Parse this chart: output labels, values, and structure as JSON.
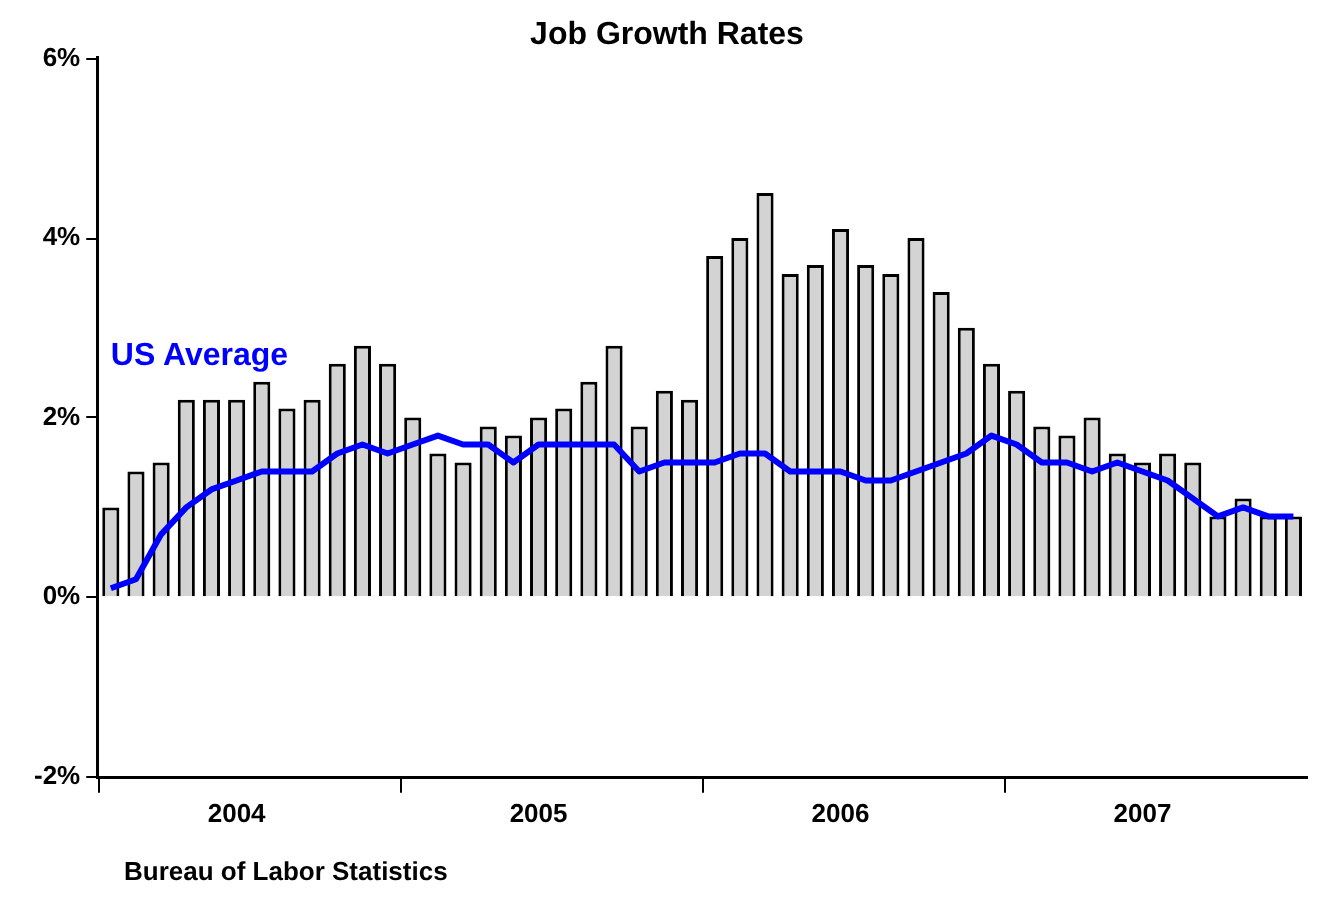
{
  "chart_data": {
    "type": "bar",
    "title": "Job Growth Rates",
    "categories": [
      null,
      null,
      null,
      null,
      null,
      "2004",
      null,
      null,
      null,
      null,
      null,
      null,
      null,
      null,
      null,
      null,
      null,
      "2005",
      null,
      null,
      null,
      null,
      null,
      null,
      null,
      null,
      null,
      null,
      null,
      "2006",
      null,
      null,
      null,
      null,
      null,
      null,
      null,
      null,
      null,
      null,
      null,
      "2007",
      null,
      null,
      null,
      null,
      null,
      null
    ],
    "series": [
      {
        "color": "#d3d3d3",
        "values": [
          1.0,
          1.4,
          1.5,
          2.2,
          2.2,
          2.2,
          2.4,
          2.1,
          2.2,
          2.6,
          2.8,
          2.6,
          2.0,
          1.6,
          1.5,
          1.9,
          1.8,
          2.0,
          2.1,
          2.4,
          2.8,
          1.9,
          2.3,
          2.2,
          3.8,
          4.0,
          4.5,
          3.6,
          3.7,
          4.1,
          3.7,
          3.6,
          4.0,
          3.4,
          3.0,
          2.6,
          2.3,
          1.9,
          1.8,
          2.0,
          1.6,
          1.5,
          1.6,
          1.5,
          0.9,
          1.1,
          0.9,
          0.9
        ]
      },
      {
        "type": "line",
        "name": "US Average",
        "color": "#0000ff",
        "values": [
          0.1,
          0.2,
          0.7,
          1.0,
          1.2,
          1.3,
          1.4,
          1.4,
          1.4,
          1.6,
          1.7,
          1.6,
          1.7,
          1.8,
          1.7,
          1.7,
          1.5,
          1.7,
          1.7,
          1.7,
          1.7,
          1.4,
          1.5,
          1.5,
          1.5,
          1.6,
          1.6,
          1.4,
          1.4,
          1.4,
          1.3,
          1.3,
          1.4,
          1.5,
          1.6,
          1.8,
          1.7,
          1.5,
          1.5,
          1.4,
          1.5,
          1.4,
          1.3,
          1.1,
          0.9,
          1.0,
          0.9,
          0.9
        ]
      }
    ],
    "ylim": [
      -2,
      6
    ],
    "yticks": [
      {
        "value": -2,
        "label": "-2%"
      },
      {
        "value": 0,
        "label": "0%"
      },
      {
        "value": 2,
        "label": "2%"
      },
      {
        "value": 4,
        "label": "4%"
      },
      {
        "value": 6,
        "label": "6%"
      }
    ],
    "annotations": [
      "Bureau of Labor Statistics"
    ],
    "grid": false,
    "legend": false
  }
}
